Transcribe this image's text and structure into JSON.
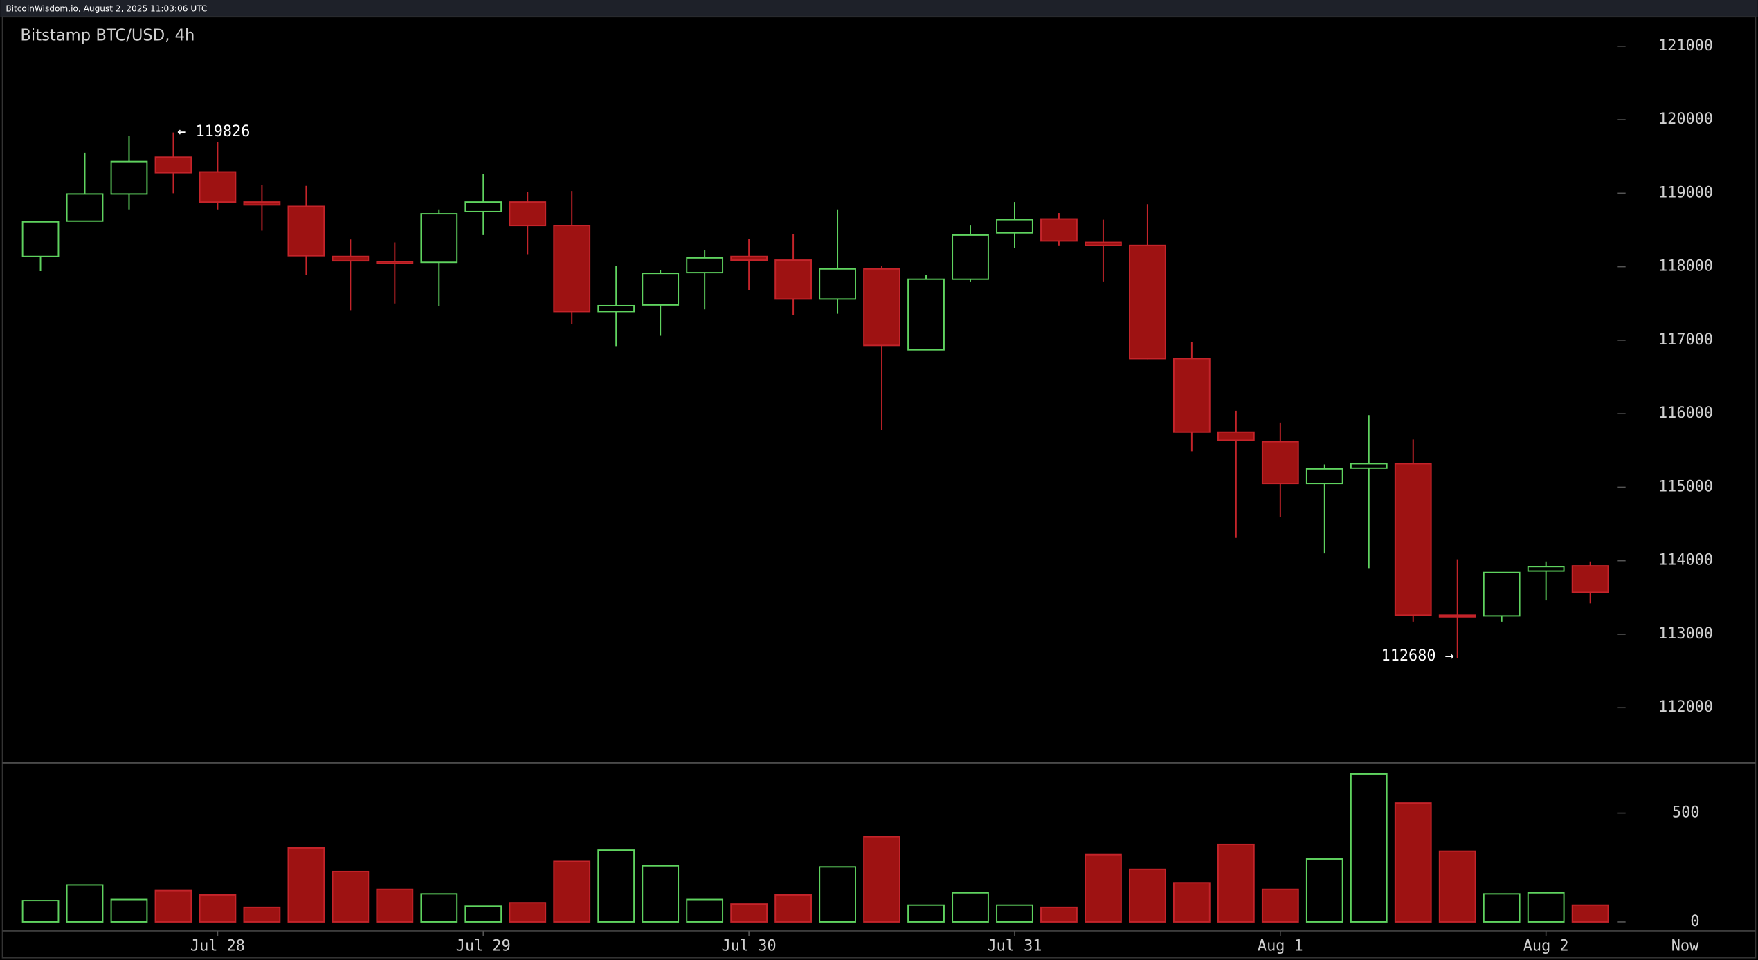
{
  "header": "BitcoinWisdom.io, August 2, 2025 11:03:06 UTC",
  "chart_data": {
    "type": "candlestick",
    "title": "Bitstamp BTC/USD, 4h",
    "annotations": [
      "← 119826",
      "112680 →"
    ],
    "categories": [
      null,
      null,
      null,
      null,
      "Jul 28",
      null,
      null,
      null,
      null,
      null,
      "Jul 29",
      null,
      null,
      null,
      null,
      null,
      "Jul 30",
      null,
      null,
      null,
      null,
      null,
      "Jul 31",
      null,
      null,
      null,
      null,
      null,
      "Aug 1",
      null,
      null,
      null,
      null,
      null,
      "Aug 2",
      null
    ],
    "now_label": "Now",
    "open": [
      118140,
      118620,
      118990,
      119490,
      119290,
      118880,
      118820,
      118140,
      118070,
      118060,
      118750,
      118880,
      118560,
      117390,
      117480,
      117920,
      118140,
      118090,
      117560,
      117970,
      116870,
      117830,
      118460,
      118650,
      118330,
      118290,
      116750,
      115750,
      115620,
      115050,
      115260,
      115320,
      113260,
      113250,
      113860,
      113930
    ],
    "high": [
      118620,
      119550,
      119780,
      119826,
      119690,
      119110,
      119100,
      118370,
      118330,
      118780,
      119260,
      119020,
      119030,
      118010,
      117950,
      118230,
      118380,
      118440,
      118780,
      118010,
      117890,
      118560,
      118880,
      118730,
      118640,
      118850,
      116980,
      116040,
      115880,
      115310,
      115980,
      115650,
      114020,
      113840,
      113990,
      113990
    ],
    "low": [
      117940,
      118620,
      118780,
      119000,
      118780,
      118490,
      117890,
      117410,
      117500,
      117470,
      118430,
      118170,
      117220,
      116920,
      117060,
      117420,
      117680,
      117340,
      117360,
      115780,
      116870,
      117790,
      118260,
      118290,
      117790,
      116740,
      115490,
      114310,
      114600,
      114100,
      113900,
      113170,
      112680,
      113170,
      113460,
      113420
    ],
    "close": [
      118610,
      118990,
      119430,
      119280,
      118880,
      118840,
      118150,
      118080,
      118060,
      118720,
      118880,
      118560,
      117390,
      117470,
      117910,
      118120,
      118090,
      117560,
      117970,
      116930,
      117830,
      118430,
      118640,
      118350,
      118290,
      116750,
      115750,
      115640,
      115050,
      115250,
      115320,
      113260,
      113250,
      113840,
      113920,
      113570
    ],
    "volume": [
      98,
      170,
      103,
      144,
      124,
      67,
      340,
      232,
      150,
      129,
      72,
      88,
      278,
      330,
      258,
      103,
      82,
      124,
      253,
      392,
      77,
      134,
      77,
      67,
      309,
      242,
      180,
      356,
      150,
      289,
      680,
      546,
      325,
      129,
      134,
      77
    ],
    "up_color": "#5fd35f",
    "down_color": "#9e1212",
    "ylim": [
      111250,
      121400
    ],
    "yticks": [
      112000,
      113000,
      114000,
      115000,
      116000,
      117000,
      118000,
      119000,
      120000,
      121000
    ],
    "volume_ylim": [
      0,
      700
    ],
    "volume_yticks": [
      0,
      500
    ]
  }
}
